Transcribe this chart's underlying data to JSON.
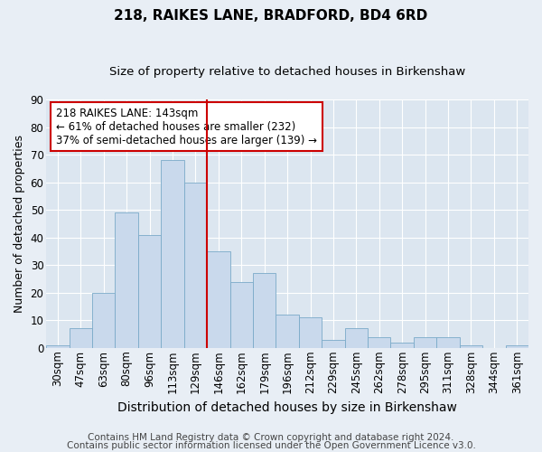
{
  "title": "218, RAIKES LANE, BRADFORD, BD4 6RD",
  "subtitle": "Size of property relative to detached houses in Birkenshaw",
  "xlabel": "Distribution of detached houses by size in Birkenshaw",
  "ylabel": "Number of detached properties",
  "categories": [
    "30sqm",
    "47sqm",
    "63sqm",
    "80sqm",
    "96sqm",
    "113sqm",
    "129sqm",
    "146sqm",
    "162sqm",
    "179sqm",
    "196sqm",
    "212sqm",
    "229sqm",
    "245sqm",
    "262sqm",
    "278sqm",
    "295sqm",
    "311sqm",
    "328sqm",
    "344sqm",
    "361sqm"
  ],
  "values": [
    1,
    7,
    20,
    49,
    41,
    68,
    60,
    35,
    24,
    27,
    12,
    11,
    3,
    7,
    4,
    2,
    4,
    4,
    1,
    0,
    1
  ],
  "bar_color": "#c9d9ec",
  "bar_edge_color": "#7aaac8",
  "vline_x_index": 7,
  "vline_color": "#cc0000",
  "annotation_text": "218 RAIKES LANE: 143sqm\n← 61% of detached houses are smaller (232)\n37% of semi-detached houses are larger (139) →",
  "annotation_box_color": "#ffffff",
  "annotation_box_edge_color": "#cc0000",
  "ylim": [
    0,
    90
  ],
  "yticks": [
    0,
    10,
    20,
    30,
    40,
    50,
    60,
    70,
    80,
    90
  ],
  "background_color": "#e8eef5",
  "plot_bg_color": "#dce6f0",
  "grid_color": "#ffffff",
  "footer_line1": "Contains HM Land Registry data © Crown copyright and database right 2024.",
  "footer_line2": "Contains public sector information licensed under the Open Government Licence v3.0.",
  "title_fontsize": 11,
  "subtitle_fontsize": 9.5,
  "xlabel_fontsize": 10,
  "ylabel_fontsize": 9,
  "tick_fontsize": 8.5,
  "annotation_fontsize": 8.5,
  "footer_fontsize": 7.5
}
